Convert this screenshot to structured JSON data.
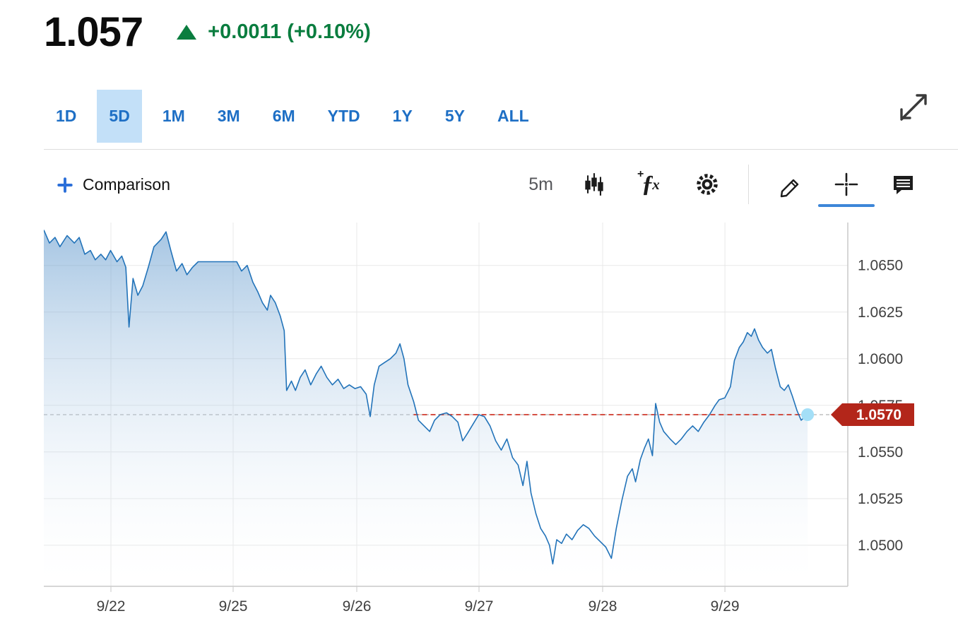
{
  "header": {
    "price": "1.057",
    "change": "+0.0011 (+0.10%)",
    "direction": "up",
    "change_color": "#0a7d3f"
  },
  "range_tabs": {
    "items": [
      "1D",
      "5D",
      "1M",
      "3M",
      "6M",
      "YTD",
      "1Y",
      "5Y",
      "ALL"
    ],
    "active": "5D",
    "label_color": "#1e6fc5",
    "active_bg": "#c3e0f8"
  },
  "toolbar": {
    "comparison_label": "Comparison",
    "interval_label": "5m",
    "active_tool": "crosshair",
    "icons": [
      "candlestick-chart",
      "indicators-fx",
      "settings-gear",
      "draw-pencil",
      "crosshair",
      "annotations"
    ]
  },
  "chart_data": {
    "type": "area",
    "title": "",
    "xlabel": "",
    "ylabel": "",
    "grid": true,
    "legend_position": "none",
    "y_ticks": [
      "1.0650",
      "1.0625",
      "1.0600",
      "1.0575",
      "1.0550",
      "1.0525",
      "1.0500"
    ],
    "ylim": [
      1.0478,
      1.0673
    ],
    "x_ticks": [
      {
        "label": "9/22",
        "t": 0.0835
      },
      {
        "label": "9/25",
        "t": 0.2355
      },
      {
        "label": "9/26",
        "t": 0.3893
      },
      {
        "label": "9/27",
        "t": 0.5413
      },
      {
        "label": "9/28",
        "t": 0.6951
      },
      {
        "label": "9/29",
        "t": 0.8472
      }
    ],
    "current_price": 1.057,
    "current_price_label": "1.0570",
    "line_color": "#2273b9",
    "area_top_color": "#5e97cc",
    "dot_color": "#a4dff7",
    "badge_color": "#b3261a",
    "current_line_color": "#d0392b",
    "base_line_color": "#b3b3b3",
    "grid_color": "#e8e8e8",
    "axis_color": "#c9c9c9",
    "points": [
      [
        0.0,
        1.0669
      ],
      [
        0.007,
        1.0662
      ],
      [
        0.014,
        1.0665
      ],
      [
        0.02,
        1.066
      ],
      [
        0.029,
        1.0666
      ],
      [
        0.038,
        1.0662
      ],
      [
        0.044,
        1.0665
      ],
      [
        0.051,
        1.0656
      ],
      [
        0.058,
        1.0658
      ],
      [
        0.064,
        1.0653
      ],
      [
        0.071,
        1.0656
      ],
      [
        0.077,
        1.0653
      ],
      [
        0.083,
        1.0658
      ],
      [
        0.091,
        1.0652
      ],
      [
        0.097,
        1.0655
      ],
      [
        0.102,
        1.0649
      ],
      [
        0.106,
        1.0617
      ],
      [
        0.111,
        1.0643
      ],
      [
        0.117,
        1.0634
      ],
      [
        0.123,
        1.0639
      ],
      [
        0.13,
        1.0649
      ],
      [
        0.137,
        1.066
      ],
      [
        0.146,
        1.0664
      ],
      [
        0.152,
        1.0668
      ],
      [
        0.158,
        1.0658
      ],
      [
        0.165,
        1.0647
      ],
      [
        0.172,
        1.0651
      ],
      [
        0.178,
        1.0645
      ],
      [
        0.185,
        1.0649
      ],
      [
        0.192,
        1.0652
      ],
      [
        0.194,
        1.0652
      ],
      [
        0.24,
        1.0652
      ],
      [
        0.246,
        1.0647
      ],
      [
        0.253,
        1.065
      ],
      [
        0.26,
        1.0641
      ],
      [
        0.266,
        1.0636
      ],
      [
        0.272,
        1.063
      ],
      [
        0.278,
        1.0626
      ],
      [
        0.282,
        1.0634
      ],
      [
        0.288,
        1.063
      ],
      [
        0.294,
        1.0623
      ],
      [
        0.299,
        1.0615
      ],
      [
        0.302,
        1.0583
      ],
      [
        0.308,
        1.0588
      ],
      [
        0.313,
        1.0583
      ],
      [
        0.319,
        1.059
      ],
      [
        0.325,
        1.0594
      ],
      [
        0.332,
        1.0586
      ],
      [
        0.339,
        1.0592
      ],
      [
        0.345,
        1.0596
      ],
      [
        0.352,
        1.059
      ],
      [
        0.359,
        1.0586
      ],
      [
        0.366,
        1.0589
      ],
      [
        0.373,
        1.0584
      ],
      [
        0.38,
        1.0586
      ],
      [
        0.387,
        1.0584
      ],
      [
        0.394,
        1.0585
      ],
      [
        0.401,
        1.0581
      ],
      [
        0.406,
        1.0569
      ],
      [
        0.411,
        1.0586
      ],
      [
        0.417,
        1.0596
      ],
      [
        0.424,
        1.0598
      ],
      [
        0.431,
        1.06
      ],
      [
        0.438,
        1.0603
      ],
      [
        0.443,
        1.0608
      ],
      [
        0.448,
        1.06
      ],
      [
        0.453,
        1.0586
      ],
      [
        0.46,
        1.0577
      ],
      [
        0.466,
        1.0567
      ],
      [
        0.473,
        1.0564
      ],
      [
        0.48,
        1.0561
      ],
      [
        0.486,
        1.0567
      ],
      [
        0.493,
        1.057
      ],
      [
        0.501,
        1.0571
      ],
      [
        0.508,
        1.0569
      ],
      [
        0.515,
        1.0566
      ],
      [
        0.521,
        1.0556
      ],
      [
        0.527,
        1.056
      ],
      [
        0.534,
        1.0565
      ],
      [
        0.541,
        1.057
      ],
      [
        0.548,
        1.0569
      ],
      [
        0.555,
        1.0564
      ],
      [
        0.562,
        1.0556
      ],
      [
        0.569,
        1.0551
      ],
      [
        0.576,
        1.0557
      ],
      [
        0.583,
        1.0547
      ],
      [
        0.59,
        1.0543
      ],
      [
        0.596,
        1.0532
      ],
      [
        0.601,
        1.0545
      ],
      [
        0.606,
        1.0528
      ],
      [
        0.612,
        1.0517
      ],
      [
        0.618,
        1.0509
      ],
      [
        0.624,
        1.0505
      ],
      [
        0.629,
        1.05
      ],
      [
        0.633,
        1.049
      ],
      [
        0.638,
        1.0503
      ],
      [
        0.644,
        1.0501
      ],
      [
        0.65,
        1.0506
      ],
      [
        0.657,
        1.0503
      ],
      [
        0.664,
        1.0508
      ],
      [
        0.671,
        1.0511
      ],
      [
        0.678,
        1.0509
      ],
      [
        0.685,
        1.0505
      ],
      [
        0.692,
        1.0502
      ],
      [
        0.699,
        1.0499
      ],
      [
        0.706,
        1.0493
      ],
      [
        0.712,
        1.0509
      ],
      [
        0.719,
        1.0524
      ],
      [
        0.726,
        1.0537
      ],
      [
        0.732,
        1.0541
      ],
      [
        0.736,
        1.0534
      ],
      [
        0.742,
        1.0546
      ],
      [
        0.747,
        1.0552
      ],
      [
        0.752,
        1.0557
      ],
      [
        0.757,
        1.0548
      ],
      [
        0.761,
        1.0576
      ],
      [
        0.766,
        1.0566
      ],
      [
        0.771,
        1.0561
      ],
      [
        0.779,
        1.0557
      ],
      [
        0.786,
        1.0554
      ],
      [
        0.793,
        1.0557
      ],
      [
        0.8,
        1.0561
      ],
      [
        0.807,
        1.0564
      ],
      [
        0.814,
        1.0561
      ],
      [
        0.821,
        1.0566
      ],
      [
        0.828,
        1.057
      ],
      [
        0.835,
        1.0575
      ],
      [
        0.84,
        1.0578
      ],
      [
        0.847,
        1.0579
      ],
      [
        0.854,
        1.0585
      ],
      [
        0.859,
        1.0599
      ],
      [
        0.865,
        1.0606
      ],
      [
        0.87,
        1.0609
      ],
      [
        0.875,
        1.0614
      ],
      [
        0.88,
        1.0612
      ],
      [
        0.884,
        1.0616
      ],
      [
        0.889,
        1.061
      ],
      [
        0.894,
        1.0606
      ],
      [
        0.9,
        1.0603
      ],
      [
        0.905,
        1.0605
      ],
      [
        0.91,
        1.0595
      ],
      [
        0.916,
        1.0585
      ],
      [
        0.921,
        1.0583
      ],
      [
        0.926,
        1.0586
      ],
      [
        0.931,
        1.058
      ],
      [
        0.937,
        1.0572
      ],
      [
        0.942,
        1.0567
      ],
      [
        0.947,
        1.0569
      ],
      [
        0.95,
        1.057
      ]
    ]
  }
}
